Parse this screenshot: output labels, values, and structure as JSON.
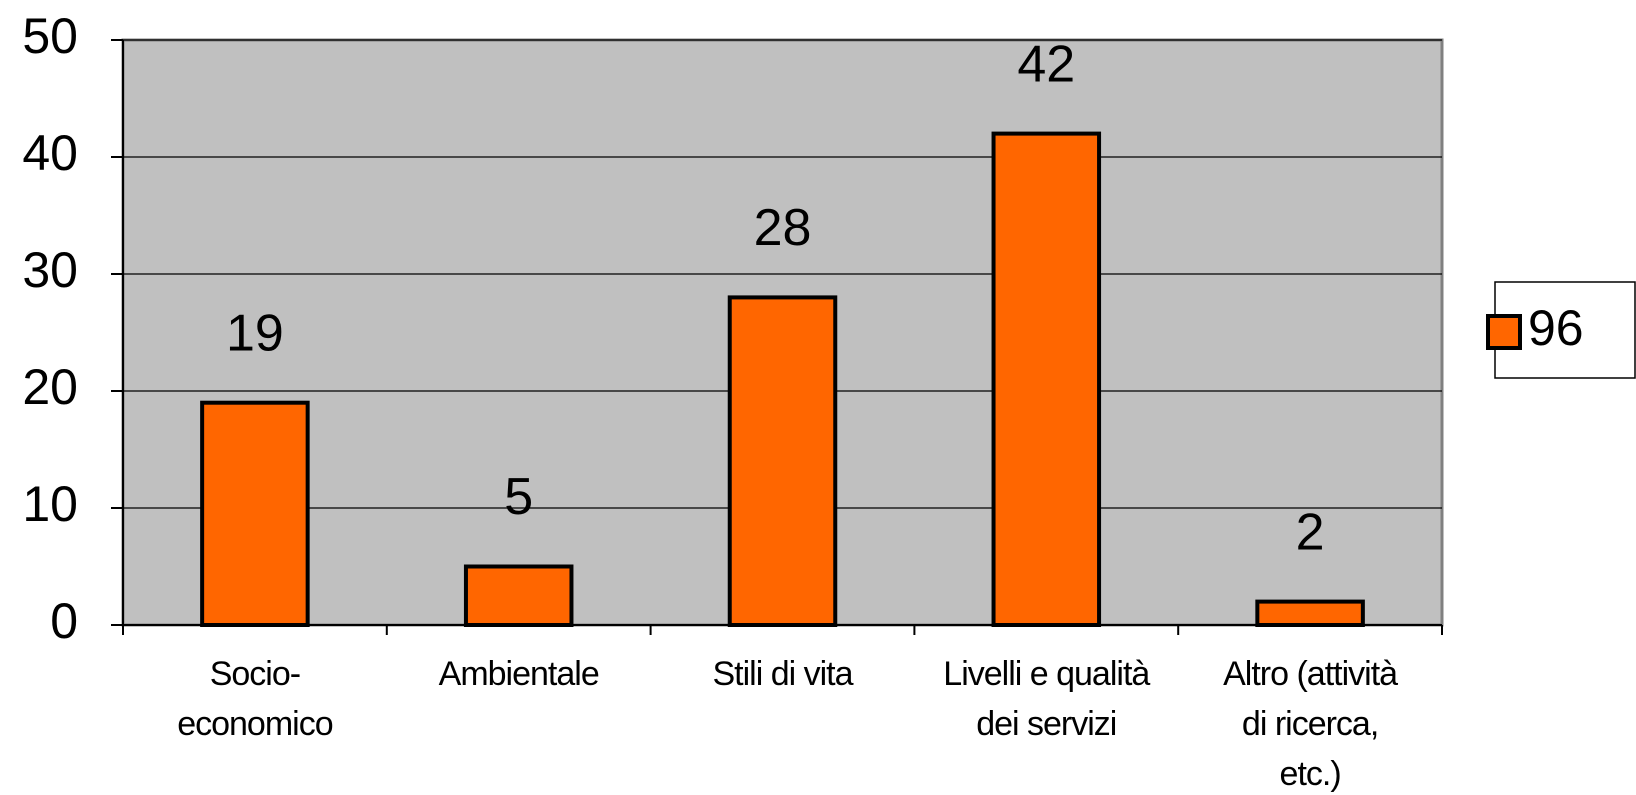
{
  "chart_data": {
    "type": "bar",
    "categories": [
      [
        "Socio-",
        "economico"
      ],
      [
        "Ambientale"
      ],
      [
        "Stili di vita"
      ],
      [
        "Livelli e qualità",
        "dei servizi"
      ],
      [
        "Altro (attività",
        "di ricerca,",
        "etc.)"
      ]
    ],
    "series": [
      {
        "name": "96",
        "color": "#ff6600",
        "values": [
          19,
          5,
          28,
          42,
          2
        ]
      }
    ],
    "ylim": [
      0,
      50
    ],
    "yticks": [
      0,
      10,
      20,
      30,
      40,
      50
    ],
    "grid": true,
    "legend": "right"
  }
}
